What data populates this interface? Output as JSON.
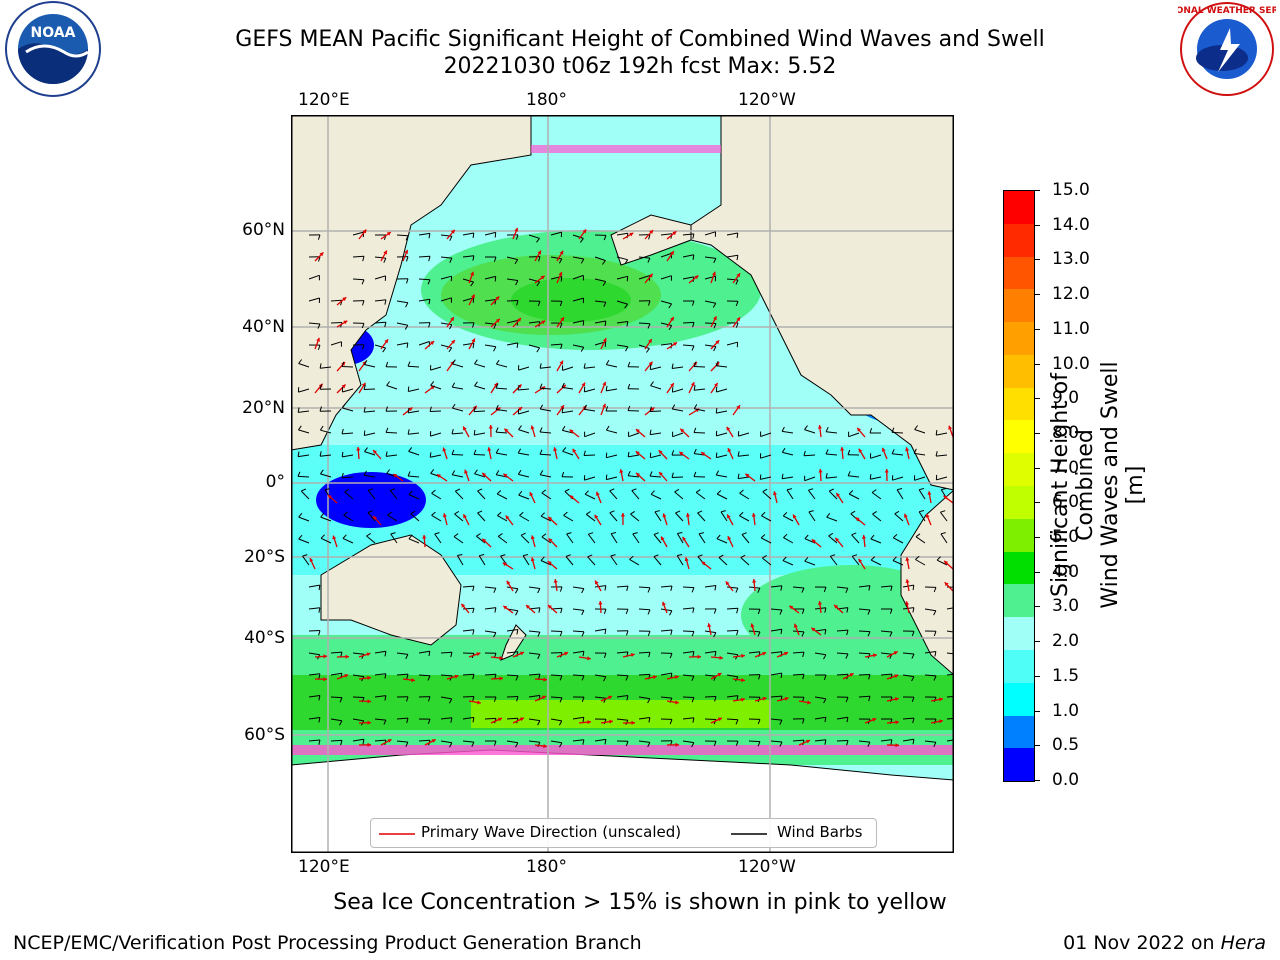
{
  "header": {
    "title_line1": "GEFS MEAN Pacific Significant Height of Combined Wind Waves and Swell",
    "title_line2": "20221030 t06z 192h fcst   Max: 5.52"
  },
  "logos": {
    "left": "NOAA",
    "right": "NATIONAL WEATHER SERVICE"
  },
  "map": {
    "lon_labels_top": [
      "120°E",
      "180°",
      "120°W"
    ],
    "lon_labels_bottom": [
      "120°E",
      "180°",
      "120°W"
    ],
    "lat_labels": [
      "60°N",
      "40°N",
      "20°N",
      "0°",
      "20°S",
      "40°S",
      "60°S"
    ],
    "legend": {
      "wave_label": "Primary Wave Direction (unscaled)",
      "barb_label": "Wind Barbs",
      "wave_color": "#e00000",
      "barb_color": "#000000"
    }
  },
  "colorbar": {
    "title_line1": "Significant Height of Combined",
    "title_line2": "Wind Waves and Swell [m]",
    "ticks": [
      "15.0",
      "14.0",
      "13.0",
      "12.0",
      "11.0",
      "10.0",
      "9.0",
      "8.0",
      "7.0",
      "6.0",
      "5.0",
      "4.0",
      "3.0",
      "2.0",
      "1.5",
      "1.0",
      "0.5",
      "0.0"
    ],
    "colors": [
      "#ff0000",
      "#ff2a00",
      "#ff5500",
      "#ff7f00",
      "#ff9f00",
      "#ffbf00",
      "#ffdf00",
      "#ffff00",
      "#dfff00",
      "#bfff00",
      "#7fef00",
      "#00df00",
      "#4ff08f",
      "#a0fff7",
      "#4ffff7",
      "#00ffff",
      "#007fff",
      "#0000ff"
    ]
  },
  "footer": {
    "subtitle": "Sea Ice Concentration > 15% is shown in pink to yellow",
    "left": "NCEP/EMC/Verification Post Processing Product Generation Branch",
    "right_date": "01 Nov 2022 on ",
    "right_host": "Hera"
  }
}
